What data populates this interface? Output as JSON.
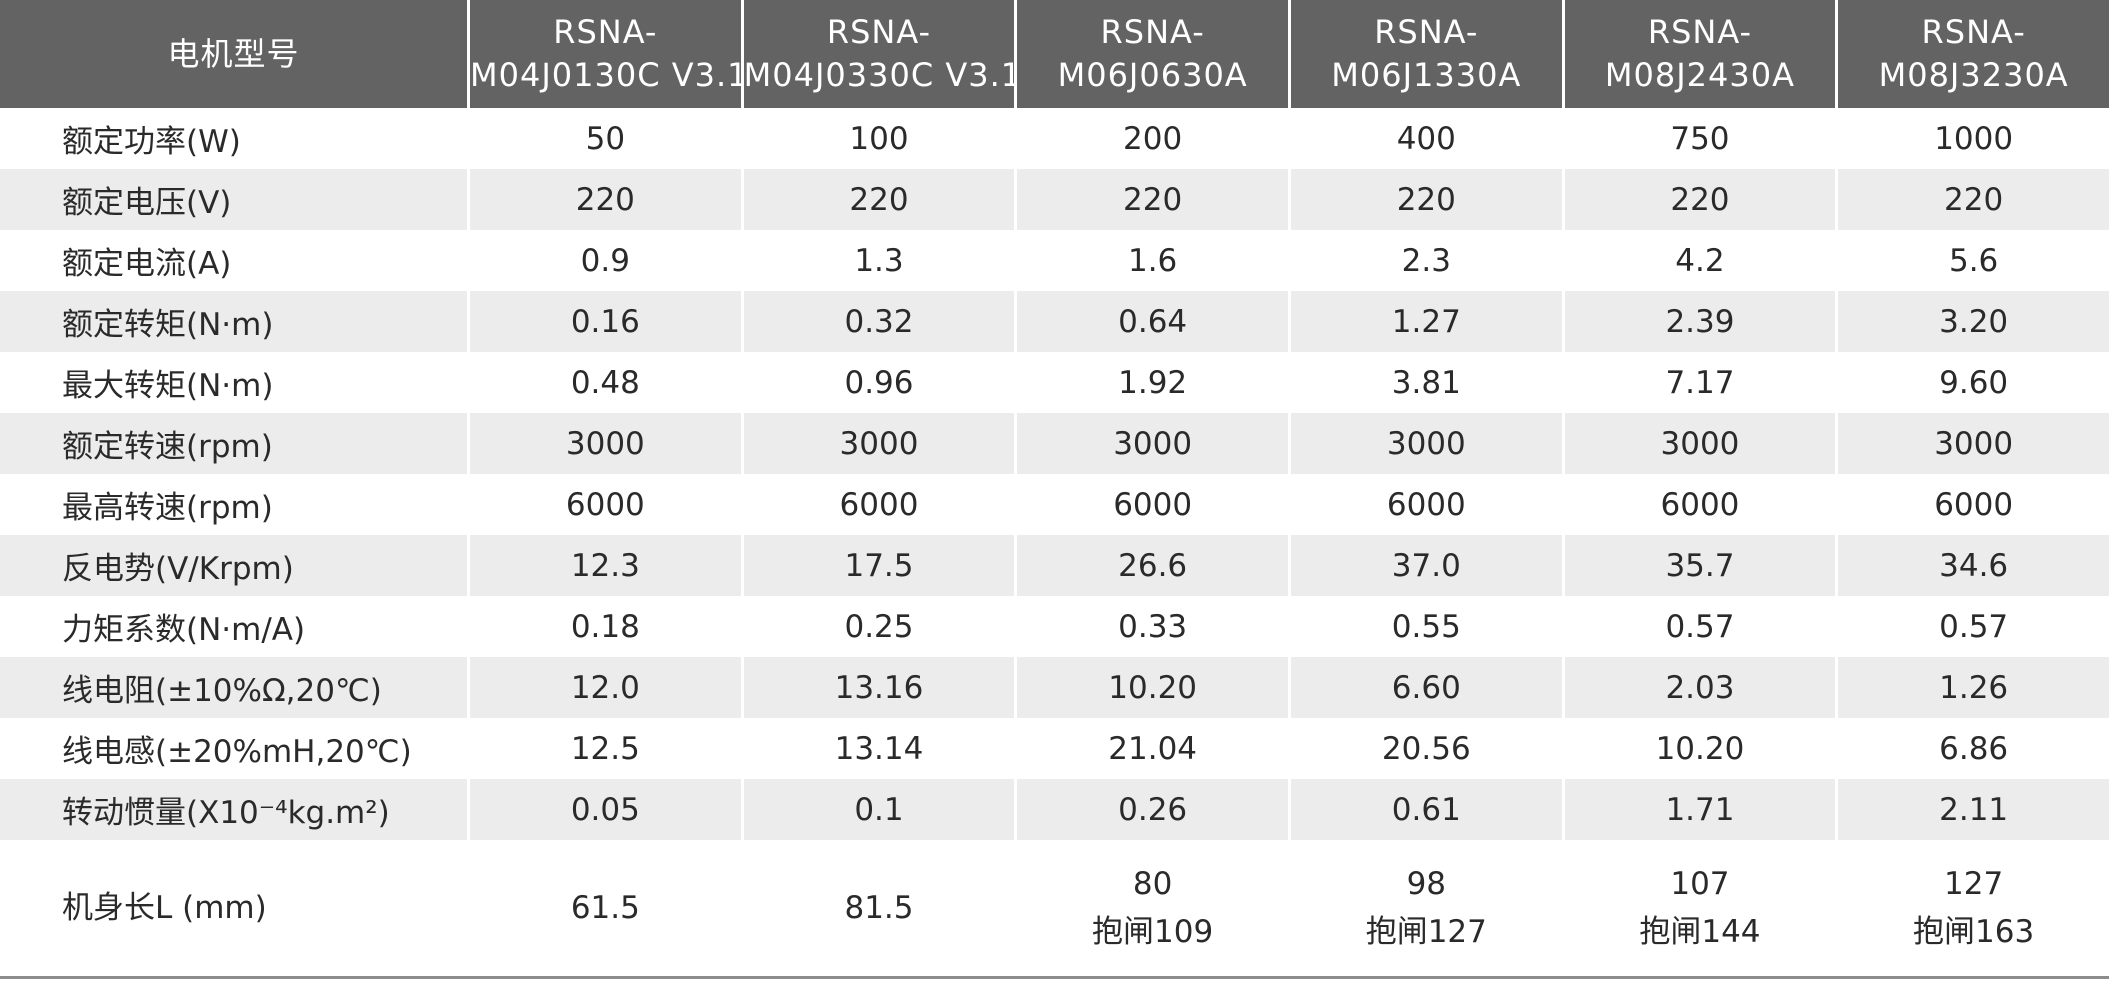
{
  "table": {
    "header_label": "电机型号",
    "models": [
      [
        "RSNA-",
        "M04J0130C V3.1"
      ],
      [
        "RSNA-",
        "M04J0330C V3.1"
      ],
      [
        "RSNA-",
        "M06J0630A"
      ],
      [
        "RSNA-",
        "M06J1330A"
      ],
      [
        "RSNA-",
        "M08J2430A"
      ],
      [
        "RSNA-",
        "M08J3230A"
      ]
    ],
    "rows": [
      {
        "label": "额定功率(W)",
        "values": [
          "50",
          "100",
          "200",
          "400",
          "750",
          "1000"
        ]
      },
      {
        "label": "额定电压(V)",
        "values": [
          "220",
          "220",
          "220",
          "220",
          "220",
          "220"
        ]
      },
      {
        "label": "额定电流(A)",
        "values": [
          "0.9",
          "1.3",
          "1.6",
          "2.3",
          "4.2",
          "5.6"
        ]
      },
      {
        "label": "额定转矩(N·m)",
        "values": [
          "0.16",
          "0.32",
          "0.64",
          "1.27",
          "2.39",
          "3.20"
        ]
      },
      {
        "label": "最大转矩(N·m)",
        "values": [
          "0.48",
          "0.96",
          "1.92",
          "3.81",
          "7.17",
          "9.60"
        ]
      },
      {
        "label": "额定转速(rpm)",
        "values": [
          "3000",
          "3000",
          "3000",
          "3000",
          "3000",
          "3000"
        ]
      },
      {
        "label": "最高转速(rpm)",
        "values": [
          "6000",
          "6000",
          "6000",
          "6000",
          "6000",
          "6000"
        ]
      },
      {
        "label": "反电势(V/Krpm)",
        "values": [
          "12.3",
          "17.5",
          "26.6",
          "37.0",
          "35.7",
          "34.6"
        ]
      },
      {
        "label": "力矩系数(N·m/A)",
        "values": [
          "0.18",
          "0.25",
          "0.33",
          "0.55",
          "0.57",
          "0.57"
        ]
      },
      {
        "label": "线电阻(±10%Ω,20℃)",
        "values": [
          "12.0",
          "13.16",
          "10.20",
          "6.60",
          "2.03",
          "1.26"
        ]
      },
      {
        "label": "线电感(±20%mH,20℃)",
        "values": [
          "12.5",
          "13.14",
          "21.04",
          "20.56",
          "10.20",
          "6.86"
        ]
      },
      {
        "label": "转动惯量(X10⁻⁴kg.m²)",
        "values": [
          "0.05",
          "0.1",
          "0.26",
          "0.61",
          "1.71",
          "2.11"
        ]
      }
    ],
    "length_row": {
      "label": "机身长L (mm)",
      "values": [
        [
          "61.5"
        ],
        [
          "81.5"
        ],
        [
          "80",
          "抱闸109"
        ],
        [
          "98",
          "抱闸127"
        ],
        [
          "107",
          "抱闸144"
        ],
        [
          "127",
          "抱闸163"
        ]
      ]
    }
  }
}
